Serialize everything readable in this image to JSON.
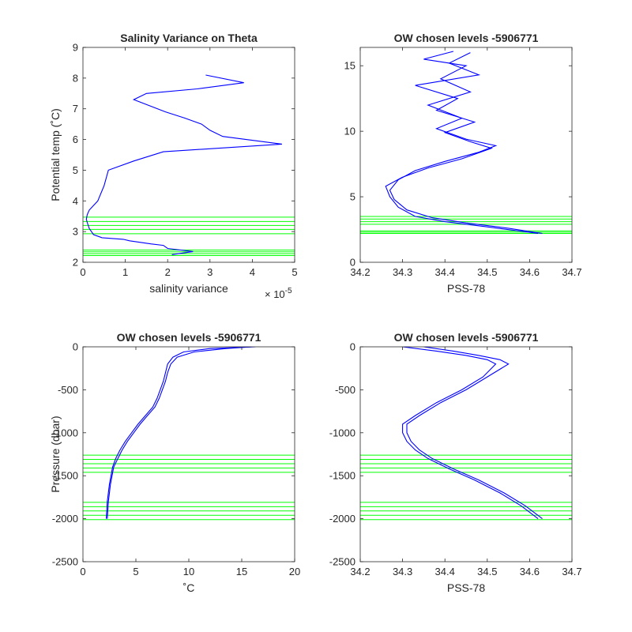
{
  "colors": {
    "profile": "#0000ff",
    "levels": "#00ff00",
    "axis": "#262626"
  },
  "chart_data": [
    {
      "type": "line",
      "title": "Salinity Variance on Theta",
      "xlabel": "salinity variance",
      "ylabel": "Potential temp (˚C)",
      "x_exponent_label": "× 10",
      "x_exponent": "-5",
      "xlim": [
        0,
        5
      ],
      "ylim": [
        2,
        9
      ],
      "xticks": [
        "0",
        "1",
        "2",
        "3",
        "4",
        "5"
      ],
      "yticks": [
        "2",
        "3",
        "4",
        "5",
        "6",
        "7",
        "8",
        "9"
      ],
      "series": [
        {
          "x": [
            2.1,
            2.6,
            2.0,
            1.9,
            1.6,
            1.1,
            0.95,
            0.45,
            0.25,
            0.2,
            0.15,
            0.1,
            0.08,
            0.1,
            0.15,
            0.35,
            0.5,
            0.6,
            1.2,
            1.9,
            4.7,
            3.3,
            3.0,
            2.8,
            2.4,
            1.95,
            1.2,
            1.5,
            2.7,
            3.8,
            2.9
          ],
          "y": [
            2.25,
            2.35,
            2.45,
            2.55,
            2.6,
            2.7,
            2.75,
            2.8,
            2.9,
            3.0,
            3.1,
            3.3,
            3.4,
            3.55,
            3.7,
            4.0,
            4.5,
            5.0,
            5.3,
            5.6,
            5.85,
            6.1,
            6.3,
            6.5,
            6.7,
            6.9,
            7.3,
            7.5,
            7.65,
            7.85,
            8.1
          ]
        }
      ],
      "hlines": [
        2.22,
        2.28,
        2.34,
        2.4,
        2.93,
        3.07,
        3.2,
        3.33,
        3.47
      ],
      "grid": false
    },
    {
      "type": "line",
      "title": "OW chosen levels -5906771",
      "xlabel": "PSS-78",
      "ylabel": "",
      "xlim": [
        34.2,
        34.7
      ],
      "ylim": [
        0,
        16.4
      ],
      "xticks": [
        "34.2",
        "34.3",
        "34.4",
        "34.5",
        "34.6",
        "34.7"
      ],
      "yticks": [
        "0",
        "5",
        "10",
        "15"
      ],
      "series": [
        {
          "name": "",
          "x": [
            34.63,
            34.55,
            34.45,
            34.37,
            34.31,
            34.28,
            34.27,
            34.29,
            34.33,
            34.4,
            34.48,
            34.52,
            34.45,
            34.38,
            34.44,
            34.36,
            34.46,
            34.39,
            34.45,
            34.35,
            34.42
          ],
          "y": [
            2.2,
            2.6,
            3.0,
            3.4,
            4.0,
            4.8,
            5.5,
            6.3,
            7.0,
            7.7,
            8.4,
            8.9,
            9.4,
            10.2,
            11.0,
            12.0,
            13.0,
            14.0,
            15.0,
            15.5,
            16.1
          ]
        },
        {
          "name": "",
          "x": [
            34.62,
            34.5,
            34.4,
            34.33,
            34.29,
            34.27,
            34.26,
            34.3,
            34.36,
            34.44,
            34.51,
            34.46,
            34.4,
            34.47,
            34.38,
            34.43,
            34.33,
            34.48,
            34.41,
            34.46
          ],
          "y": [
            2.2,
            2.7,
            3.1,
            3.5,
            4.2,
            5.0,
            5.8,
            6.5,
            7.2,
            7.9,
            8.7,
            9.2,
            9.9,
            10.7,
            11.6,
            12.5,
            13.5,
            14.3,
            15.2,
            16.0
          ]
        }
      ],
      "hlines": [
        2.2,
        2.3,
        2.4,
        2.9,
        3.1,
        3.3,
        3.5
      ],
      "grid": false
    },
    {
      "type": "line",
      "title": "OW chosen levels -5906771",
      "xlabel": "˚C",
      "ylabel": "Pressure (dbar)",
      "xlim": [
        0,
        20
      ],
      "ylim": [
        -2500,
        0
      ],
      "xticks": [
        "0",
        "5",
        "10",
        "15",
        "20"
      ],
      "yticks": [
        "0",
        "-500",
        "-1000",
        "-1500",
        "-2000",
        "-2500"
      ],
      "series": [
        {
          "name": "",
          "x": [
            2.2,
            2.3,
            2.5,
            2.8,
            3.1,
            3.5,
            4.0,
            4.6,
            5.2,
            5.9,
            6.6,
            7.0,
            7.3,
            7.6,
            7.8,
            8.0,
            8.5,
            9.5,
            12.0,
            16.3
          ],
          "y": [
            -2000,
            -1800,
            -1600,
            -1400,
            -1300,
            -1200,
            -1100,
            -1000,
            -900,
            -800,
            -700,
            -600,
            -500,
            -400,
            -300,
            -200,
            -120,
            -60,
            -20,
            0
          ]
        },
        {
          "name": "",
          "x": [
            2.3,
            2.4,
            2.6,
            2.9,
            3.3,
            3.7,
            4.2,
            4.8,
            5.4,
            6.1,
            6.8,
            7.2,
            7.5,
            7.8,
            8.0,
            8.3,
            8.9,
            10.5,
            13.5,
            16.0
          ],
          "y": [
            -2000,
            -1800,
            -1600,
            -1400,
            -1300,
            -1200,
            -1100,
            -1000,
            -900,
            -800,
            -700,
            -600,
            -500,
            -400,
            -300,
            -200,
            -120,
            -60,
            -20,
            0
          ]
        }
      ],
      "hlines": [
        -1260,
        -1310,
        -1360,
        -1410,
        -1460,
        -1810,
        -1860,
        -1910,
        -1960,
        -2010
      ],
      "grid": false
    },
    {
      "type": "line",
      "title": "OW chosen levels -5906771",
      "xlabel": "PSS-78",
      "ylabel": "",
      "xlim": [
        34.2,
        34.7
      ],
      "ylim": [
        -2500,
        0
      ],
      "xticks": [
        "34.2",
        "34.3",
        "34.4",
        "34.5",
        "34.6",
        "34.7"
      ],
      "yticks": [
        "0",
        "-500",
        "-1000",
        "-1500",
        "-2000",
        "-2500"
      ],
      "series": [
        {
          "name": "",
          "x": [
            34.62,
            34.58,
            34.53,
            34.47,
            34.41,
            34.36,
            34.33,
            34.31,
            34.3,
            34.3,
            34.33,
            34.38,
            34.44,
            34.49,
            34.52,
            34.5,
            34.45,
            34.38,
            34.3
          ],
          "y": [
            -2000,
            -1850,
            -1700,
            -1550,
            -1420,
            -1300,
            -1200,
            -1100,
            -1000,
            -900,
            -800,
            -650,
            -500,
            -350,
            -200,
            -150,
            -100,
            -50,
            0
          ]
        },
        {
          "name": "",
          "x": [
            34.63,
            34.59,
            34.54,
            34.48,
            34.42,
            34.37,
            34.34,
            34.32,
            34.31,
            34.31,
            34.34,
            34.39,
            34.45,
            34.5,
            34.55,
            34.53,
            34.48,
            34.42,
            34.35
          ],
          "y": [
            -2000,
            -1850,
            -1700,
            -1550,
            -1420,
            -1300,
            -1200,
            -1100,
            -1000,
            -900,
            -800,
            -650,
            -500,
            -350,
            -200,
            -150,
            -100,
            -50,
            0
          ]
        }
      ],
      "hlines": [
        -1260,
        -1310,
        -1360,
        -1410,
        -1460,
        -1810,
        -1860,
        -1910,
        -1960,
        -2010
      ],
      "grid": false
    }
  ]
}
